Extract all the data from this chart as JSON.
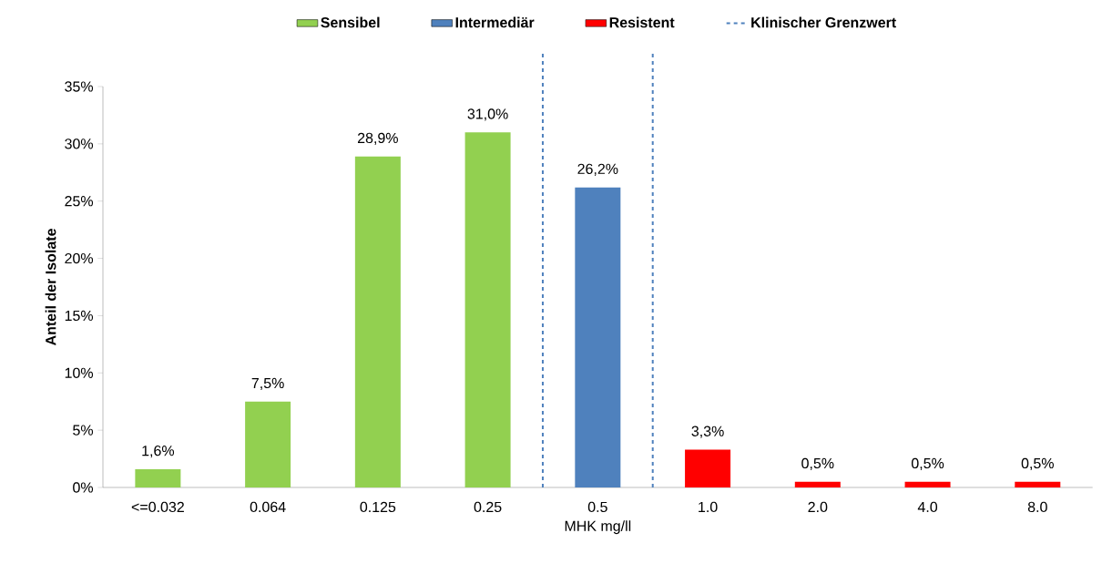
{
  "chart_data": {
    "type": "bar",
    "xlabel": "MHK mg/ll",
    "ylabel": "Anteil der Isolate",
    "legend": "top",
    "categories": [
      "<=0.032",
      "0.064",
      "0.125",
      "0.25",
      "0.5",
      "1.0",
      "2.0",
      "4.0",
      "8.0"
    ],
    "ylim": [
      0,
      35
    ],
    "yticks": [
      {
        "value": 0,
        "label": "0%"
      },
      {
        "value": 5,
        "label": "5%"
      },
      {
        "value": 10,
        "label": "10%"
      },
      {
        "value": 15,
        "label": "15%"
      },
      {
        "value": 20,
        "label": "20%"
      },
      {
        "value": 25,
        "label": "25%"
      },
      {
        "value": 30,
        "label": "30%"
      },
      {
        "value": 35,
        "label": "35%"
      }
    ],
    "series": [
      {
        "name": "Sensibel",
        "color": "#92d050",
        "values": [
          1.6,
          7.5,
          28.9,
          31.0,
          null,
          null,
          null,
          null,
          null
        ],
        "value_labels": [
          "1,6%",
          "7,5%",
          "28,9%",
          "31,0%",
          null,
          null,
          null,
          null,
          null
        ]
      },
      {
        "name": "Intermediär",
        "color": "#4f81bd",
        "values": [
          null,
          null,
          null,
          null,
          26.2,
          null,
          null,
          null,
          null
        ],
        "value_labels": [
          null,
          null,
          null,
          null,
          "26,2%",
          null,
          null,
          null,
          null
        ]
      },
      {
        "name": "Resistent",
        "color": "#ff0000",
        "values": [
          null,
          null,
          null,
          null,
          null,
          3.3,
          0.5,
          0.5,
          0.5
        ],
        "value_labels": [
          null,
          null,
          null,
          null,
          null,
          "3,3%",
          "0,5%",
          "0,5%",
          "0,5%"
        ]
      }
    ],
    "annotations": [
      "Klinischer Grenzwert"
    ]
  }
}
